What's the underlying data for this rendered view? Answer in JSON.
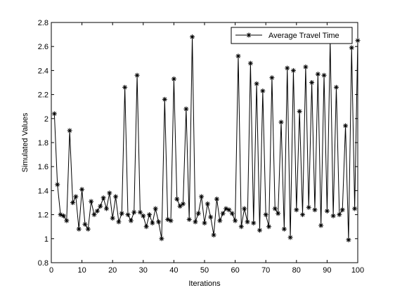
{
  "chart_data": {
    "type": "line",
    "xlabel": "Iterations",
    "ylabel": "Simulated Values",
    "xlim": [
      0,
      100
    ],
    "ylim": [
      0.8,
      2.8
    ],
    "xticks": [
      0,
      10,
      20,
      30,
      40,
      50,
      60,
      70,
      80,
      90,
      100
    ],
    "yticks": [
      0.8,
      1,
      1.2,
      1.4,
      1.6,
      1.8,
      2,
      2.2,
      2.4,
      2.6,
      2.8
    ],
    "grid": false,
    "legend_position": "top-right",
    "series": [
      {
        "name": "Average Travel Time",
        "color": "#000000",
        "marker": "asterisk",
        "x": [
          1,
          2,
          3,
          4,
          5,
          6,
          7,
          8,
          9,
          10,
          11,
          12,
          13,
          14,
          15,
          16,
          17,
          18,
          19,
          20,
          21,
          22,
          23,
          24,
          25,
          26,
          27,
          28,
          29,
          30,
          31,
          32,
          33,
          34,
          35,
          36,
          37,
          38,
          39,
          40,
          41,
          42,
          43,
          44,
          45,
          46,
          47,
          48,
          49,
          50,
          51,
          52,
          53,
          54,
          55,
          56,
          57,
          58,
          59,
          60,
          61,
          62,
          63,
          64,
          65,
          66,
          67,
          68,
          69,
          70,
          71,
          72,
          73,
          74,
          75,
          76,
          77,
          78,
          79,
          80,
          81,
          82,
          83,
          84,
          85,
          86,
          87,
          88,
          89,
          90,
          91,
          92,
          93,
          94,
          95,
          96,
          97,
          98,
          99,
          100
        ],
        "y": [
          2.04,
          1.45,
          1.2,
          1.19,
          1.15,
          1.9,
          1.3,
          1.35,
          1.08,
          1.41,
          1.12,
          1.08,
          1.31,
          1.2,
          1.23,
          1.27,
          1.34,
          1.25,
          1.38,
          1.17,
          1.35,
          1.14,
          1.21,
          2.26,
          1.2,
          1.15,
          1.22,
          2.36,
          1.22,
          1.19,
          1.1,
          1.2,
          1.13,
          1.25,
          1.14,
          1.0,
          2.16,
          1.16,
          1.15,
          2.33,
          1.33,
          1.27,
          1.29,
          2.08,
          1.16,
          2.68,
          1.14,
          1.21,
          1.35,
          1.13,
          1.29,
          1.18,
          1.03,
          1.33,
          1.15,
          1.21,
          1.25,
          1.24,
          1.21,
          1.15,
          2.52,
          1.1,
          1.25,
          1.14,
          2.46,
          1.13,
          2.29,
          1.07,
          2.23,
          1.2,
          1.1,
          2.34,
          1.25,
          1.21,
          1.97,
          1.08,
          2.42,
          1.01,
          2.4,
          1.24,
          2.06,
          1.2,
          2.43,
          1.26,
          2.3,
          1.24,
          2.37,
          1.11,
          2.36,
          1.23,
          2.65,
          1.19,
          2.26,
          1.2,
          1.24,
          1.94,
          0.99,
          2.59,
          1.25,
          2.65
        ]
      }
    ]
  }
}
